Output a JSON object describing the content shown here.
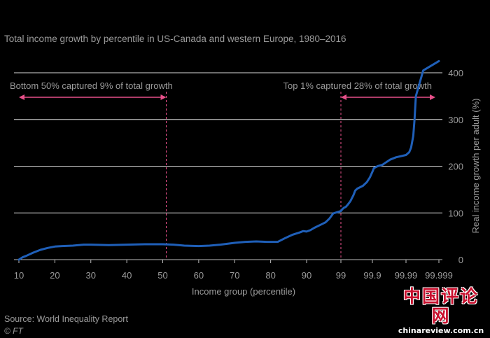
{
  "subtitle": "Total income growth by percentile in US-Canada and western Europe, 1980–2016",
  "source": "Source: World Inequality Report",
  "copyright": "© FT",
  "watermark": {
    "title": "中国评论网",
    "url": "chinareview.com.cn"
  },
  "colors": {
    "line": "#1f5fb8",
    "annotation": "#e8508a",
    "grid": "#d8d8d8",
    "text": "#9b9b9b"
  },
  "chart_data": {
    "type": "line",
    "title": "",
    "xlabel": "Income group (percentile)",
    "ylabel": "Real income growth per adult (%)",
    "ylim": [
      0,
      400
    ],
    "yticks": [
      0,
      100,
      200,
      300,
      400
    ],
    "xticks": [
      "10",
      "20",
      "30",
      "40",
      "50",
      "60",
      "70",
      "80",
      "90",
      "99",
      "99.9",
      "99.99",
      "99.999"
    ],
    "grid": true,
    "series": [
      {
        "name": "",
        "color": "#1f5fb8",
        "points": [
          [
            "10",
            0
          ],
          [
            "11",
            5
          ],
          [
            "12",
            8
          ],
          [
            "14",
            15
          ],
          [
            "16",
            21
          ],
          [
            "18",
            25
          ],
          [
            "20",
            28
          ],
          [
            "22",
            29
          ],
          [
            "25",
            30
          ],
          [
            "28",
            32
          ],
          [
            "30",
            32
          ],
          [
            "35",
            31
          ],
          [
            "40",
            32
          ],
          [
            "45",
            33
          ],
          [
            "50",
            33
          ],
          [
            "53",
            32
          ],
          [
            "56",
            30
          ],
          [
            "60",
            29
          ],
          [
            "63",
            30
          ],
          [
            "66",
            32
          ],
          [
            "70",
            36
          ],
          [
            "73",
            38
          ],
          [
            "76",
            39
          ],
          [
            "79",
            38
          ],
          [
            "82",
            38
          ],
          [
            "84",
            46
          ],
          [
            "86",
            53
          ],
          [
            "88",
            58
          ],
          [
            "89",
            61
          ],
          [
            "90",
            60
          ],
          [
            "91",
            63
          ],
          [
            "92",
            68
          ],
          [
            "94",
            76
          ],
          [
            "95",
            80
          ],
          [
            "96",
            88
          ],
          [
            "97",
            99
          ],
          [
            "99",
            104
          ],
          [
            "99.1",
            108
          ],
          [
            "99.2",
            111
          ],
          [
            "99.3",
            113
          ],
          [
            "99.4",
            118
          ],
          [
            "99.5",
            125
          ],
          [
            "99.6",
            138
          ],
          [
            "99.65",
            148
          ],
          [
            "99.7",
            152
          ],
          [
            "99.8",
            158
          ],
          [
            "99.85",
            166
          ],
          [
            "99.88",
            176
          ],
          [
            "99.9",
            188
          ],
          [
            "99.91",
            196
          ],
          [
            "99.93",
            200
          ],
          [
            "99.95",
            203
          ],
          [
            "99.96",
            208
          ],
          [
            "99.97",
            214
          ],
          [
            "99.98",
            219
          ],
          [
            "99.99",
            224
          ],
          [
            "99.992",
            230
          ],
          [
            "99.993",
            240
          ],
          [
            "99.994",
            265
          ],
          [
            "99.9945",
            300
          ],
          [
            "99.995",
            350
          ],
          [
            "99.997",
            405
          ],
          [
            "99.999",
            425
          ]
        ]
      }
    ],
    "annotations": [
      {
        "text": "Bottom 50% captured 9% of total growth",
        "from": "10",
        "to": "50"
      },
      {
        "text": "Top 1% captured 28% of total growth",
        "from": "99",
        "to": "99.999"
      }
    ]
  }
}
